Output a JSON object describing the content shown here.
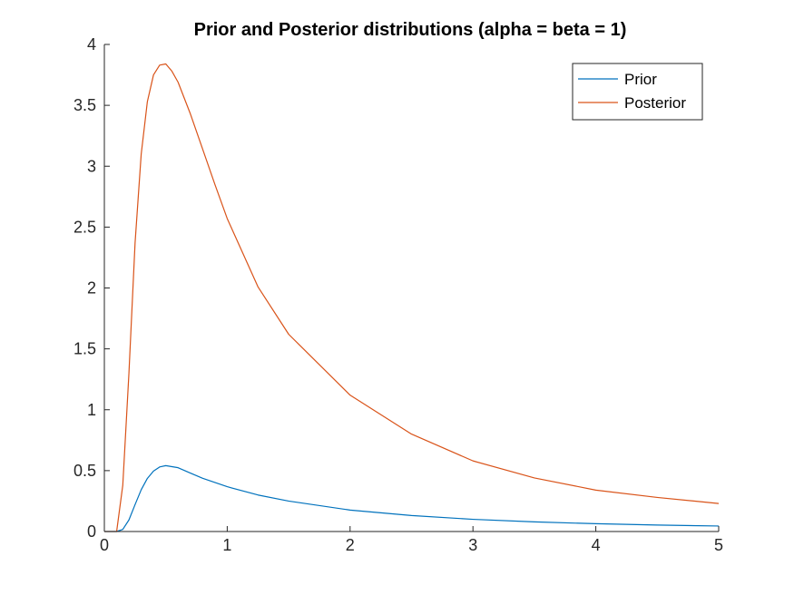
{
  "chart_data": {
    "type": "line",
    "title": "Prior and Posterior distributions (alpha = beta = 1)",
    "xlabel": "",
    "ylabel": "",
    "xlim": [
      0,
      5
    ],
    "ylim": [
      0,
      4
    ],
    "x_ticks": [
      0,
      1,
      2,
      3,
      4,
      5
    ],
    "x_tick_labels": [
      "0",
      "1",
      "2",
      "3",
      "4",
      "5"
    ],
    "y_ticks": [
      0,
      0.5,
      1,
      1.5,
      2,
      2.5,
      3,
      3.5,
      4
    ],
    "y_tick_labels": [
      "0",
      "0.5",
      "1",
      "1.5",
      "2",
      "2.5",
      "3",
      "3.5",
      "4"
    ],
    "grid": false,
    "legend_position": "top-right",
    "series": [
      {
        "name": "Prior",
        "color": "#0072BD",
        "x": [
          0,
          0.05,
          0.1,
          0.15,
          0.2,
          0.25,
          0.3,
          0.35,
          0.4,
          0.45,
          0.5,
          0.6,
          0.7,
          0.8,
          1.0,
          1.25,
          1.5,
          2.0,
          2.5,
          3.0,
          3.5,
          4.0,
          4.5,
          5.0
        ],
        "y": [
          0,
          0.0,
          0.0,
          0.017,
          0.095,
          0.221,
          0.343,
          0.436,
          0.496,
          0.53,
          0.541,
          0.524,
          0.48,
          0.437,
          0.368,
          0.3,
          0.25,
          0.176,
          0.131,
          0.1,
          0.079,
          0.064,
          0.053,
          0.045
        ]
      },
      {
        "name": "Posterior",
        "color": "#D95319",
        "x": [
          0,
          0.05,
          0.1,
          0.15,
          0.2,
          0.25,
          0.3,
          0.35,
          0.4,
          0.45,
          0.5,
          0.55,
          0.6,
          0.7,
          0.8,
          0.9,
          1.0,
          1.25,
          1.5,
          2.0,
          2.5,
          3.0,
          3.5,
          4.0,
          4.5,
          5.0
        ],
        "y": [
          0,
          0.0,
          0.0,
          0.38,
          1.3,
          2.37,
          3.1,
          3.53,
          3.75,
          3.83,
          3.84,
          3.78,
          3.69,
          3.43,
          3.14,
          2.85,
          2.57,
          2.01,
          1.62,
          1.12,
          0.8,
          0.58,
          0.44,
          0.34,
          0.28,
          0.23
        ]
      }
    ]
  }
}
